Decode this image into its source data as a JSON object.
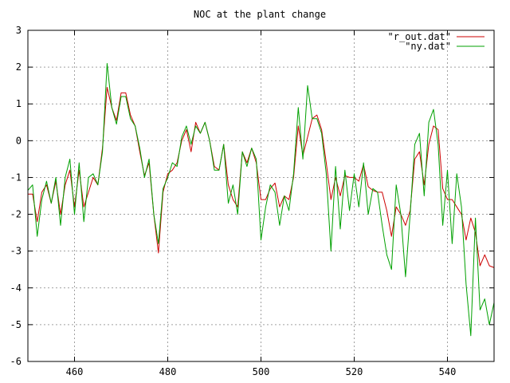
{
  "chart_data": {
    "type": "line",
    "title": "NOC at the plant change",
    "xlabel": "",
    "ylabel": "",
    "xlim": [
      450,
      550
    ],
    "ylim": [
      -6,
      3
    ],
    "xticks": [
      460,
      480,
      500,
      520,
      540
    ],
    "yticks": [
      -6,
      -5,
      -4,
      -3,
      -2,
      -1,
      0,
      1,
      2,
      3
    ],
    "grid": true,
    "legend_position": "top-right",
    "series": [
      {
        "name": "\"r_out.dat\"",
        "color": "#cc0000",
        "x": [
          450,
          451,
          452,
          453,
          454,
          455,
          456,
          457,
          458,
          459,
          460,
          461,
          462,
          463,
          464,
          465,
          466,
          467,
          468,
          469,
          470,
          471,
          472,
          473,
          474,
          475,
          476,
          477,
          478,
          479,
          480,
          481,
          482,
          483,
          484,
          485,
          486,
          487,
          488,
          489,
          490,
          491,
          492,
          493,
          494,
          495,
          496,
          497,
          498,
          499,
          500,
          501,
          502,
          503,
          504,
          505,
          506,
          507,
          508,
          509,
          510,
          511,
          512,
          513,
          514,
          515,
          516,
          517,
          518,
          519,
          520,
          521,
          522,
          523,
          524,
          525,
          526,
          527,
          528,
          529,
          530,
          531,
          532,
          533,
          534,
          535,
          536,
          537,
          538,
          539,
          540,
          541,
          542,
          543,
          544,
          545,
          546,
          547,
          548,
          549,
          550
        ],
        "y": [
          -1.45,
          -1.45,
          -2.2,
          -1.4,
          -1.2,
          -1.7,
          -1.1,
          -2.0,
          -1.2,
          -0.8,
          -1.8,
          -0.8,
          -1.8,
          -1.4,
          -1.0,
          -1.2,
          -0.2,
          1.45,
          0.9,
          0.55,
          1.3,
          1.3,
          0.7,
          0.4,
          -0.3,
          -0.95,
          -0.6,
          -2.0,
          -3.05,
          -1.4,
          -0.9,
          -0.8,
          -0.6,
          0.0,
          0.3,
          -0.3,
          0.5,
          0.2,
          0.5,
          0.0,
          -0.7,
          -0.8,
          -0.1,
          -1.2,
          -1.6,
          -1.8,
          -0.3,
          -0.6,
          -0.2,
          -0.6,
          -1.6,
          -1.6,
          -1.3,
          -1.15,
          -1.8,
          -1.5,
          -1.6,
          -1.0,
          0.4,
          -0.4,
          0.1,
          0.6,
          0.7,
          0.3,
          -0.6,
          -1.6,
          -1.0,
          -1.5,
          -0.95,
          -1.0,
          -1.0,
          -1.1,
          -0.65,
          -1.25,
          -1.35,
          -1.4,
          -1.4,
          -1.9,
          -2.6,
          -1.8,
          -2.0,
          -2.3,
          -1.9,
          -0.5,
          -0.3,
          -1.2,
          -0.1,
          0.4,
          0.3,
          -1.3,
          -1.6,
          -1.6,
          -1.8,
          -2.0,
          -2.7,
          -2.1,
          -2.5,
          -3.4,
          -3.1,
          -3.4,
          -3.45
        ]
      },
      {
        "name": "\"ny.dat\"",
        "color": "#00a000",
        "x": [
          450,
          451,
          452,
          453,
          454,
          455,
          456,
          457,
          458,
          459,
          460,
          461,
          462,
          463,
          464,
          465,
          466,
          467,
          468,
          469,
          470,
          471,
          472,
          473,
          474,
          475,
          476,
          477,
          478,
          479,
          480,
          481,
          482,
          483,
          484,
          485,
          486,
          487,
          488,
          489,
          490,
          491,
          492,
          493,
          494,
          495,
          496,
          497,
          498,
          499,
          500,
          501,
          502,
          503,
          504,
          505,
          506,
          507,
          508,
          509,
          510,
          511,
          512,
          513,
          514,
          515,
          516,
          517,
          518,
          519,
          520,
          521,
          522,
          523,
          524,
          525,
          526,
          527,
          528,
          529,
          530,
          531,
          532,
          533,
          534,
          535,
          536,
          537,
          538,
          539,
          540,
          541,
          542,
          543,
          544,
          545,
          546,
          547,
          548,
          549,
          550
        ],
        "y": [
          -1.35,
          -1.2,
          -2.6,
          -1.6,
          -1.1,
          -1.7,
          -1.0,
          -2.3,
          -1.0,
          -0.5,
          -2.0,
          -0.6,
          -2.2,
          -1.0,
          -0.9,
          -1.2,
          -0.3,
          2.1,
          0.9,
          0.45,
          1.2,
          1.2,
          0.6,
          0.4,
          -0.2,
          -1.0,
          -0.5,
          -2.0,
          -2.8,
          -1.3,
          -1.0,
          -0.6,
          -0.7,
          0.1,
          0.4,
          -0.1,
          0.4,
          0.2,
          0.5,
          0.0,
          -0.8,
          -0.8,
          -0.1,
          -1.7,
          -1.2,
          -2.0,
          -0.3,
          -0.7,
          -0.2,
          -0.5,
          -2.7,
          -1.8,
          -1.2,
          -1.4,
          -2.3,
          -1.5,
          -1.9,
          -0.9,
          0.9,
          -0.5,
          1.5,
          0.6,
          0.6,
          0.2,
          -0.9,
          -3.0,
          -0.7,
          -2.4,
          -0.8,
          -1.9,
          -0.9,
          -1.8,
          -0.6,
          -2.0,
          -1.3,
          -1.4,
          -2.3,
          -3.1,
          -3.5,
          -1.2,
          -2.0,
          -3.7,
          -2.0,
          -0.1,
          0.2,
          -1.5,
          0.5,
          0.85,
          -0.1,
          -2.3,
          -0.8,
          -2.8,
          -0.9,
          -1.8,
          -3.9,
          -5.3,
          -2.1,
          -4.6,
          -4.3,
          -5.0,
          -4.4
        ]
      }
    ]
  }
}
